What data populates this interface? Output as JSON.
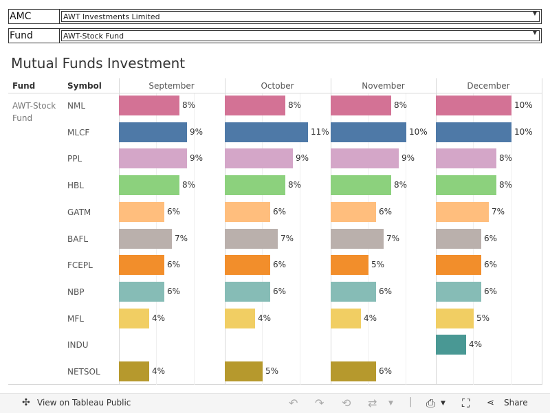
{
  "filters": {
    "amc_label": "AMC",
    "amc_value": "AWT Investments Limited",
    "fund_label": "Fund",
    "fund_value": "AWT-Stock Fund"
  },
  "chart_data": {
    "type": "bar",
    "title": "Mutual Funds Investment",
    "row_header_fund": "Fund",
    "row_header_symbol": "Symbol",
    "fund": "AWT-Stock Fund",
    "categories": [
      "NML",
      "MLCF",
      "PPL",
      "HBL",
      "GATM",
      "BAFL",
      "FCEPL",
      "NBP",
      "MFL",
      "INDU",
      "NETSOL"
    ],
    "colors": [
      "#d37295",
      "#4e79a7",
      "#d4a6c8",
      "#8cd17d",
      "#ffbe7d",
      "#bab0ac",
      "#f28e2b",
      "#86bcb6",
      "#f1ce63",
      "#499894",
      "#b6992d"
    ],
    "series": [
      {
        "name": "September",
        "values": [
          8,
          9,
          9,
          8,
          6,
          7,
          6,
          6,
          4,
          null,
          4
        ]
      },
      {
        "name": "October",
        "values": [
          8,
          11,
          9,
          8,
          6,
          7,
          6,
          6,
          4,
          null,
          5
        ]
      },
      {
        "name": "November",
        "values": [
          8,
          10,
          9,
          8,
          6,
          7,
          5,
          6,
          4,
          null,
          6
        ]
      },
      {
        "name": "December",
        "values": [
          10,
          10,
          8,
          8,
          7,
          6,
          6,
          6,
          5,
          4,
          null
        ]
      }
    ],
    "value_suffix": "%",
    "xlim": [
      0,
      14
    ]
  },
  "footer": {
    "view_label": "View on Tableau Public",
    "share_label": "Share"
  }
}
